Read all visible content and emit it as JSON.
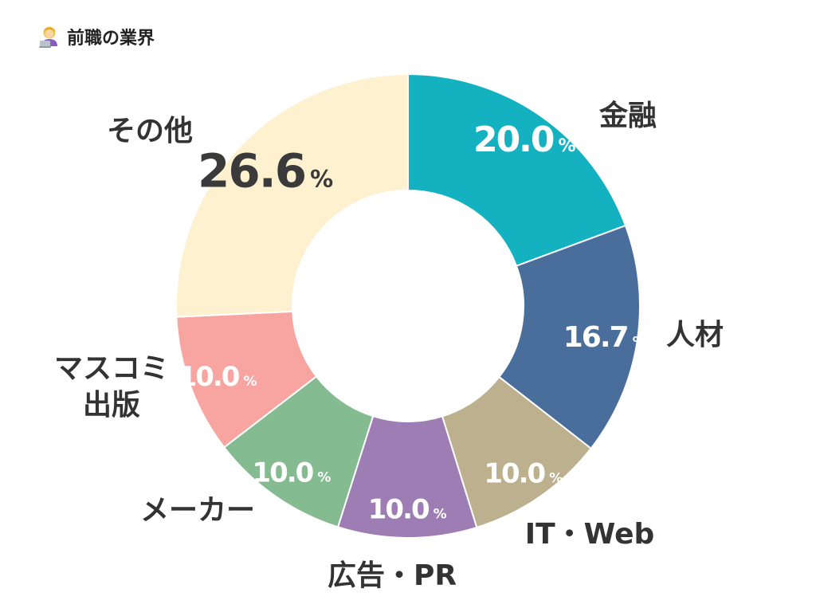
{
  "header": {
    "title": "前職の業界",
    "icon": "technologist-emoji-icon"
  },
  "chart_data": {
    "type": "pie",
    "donut": true,
    "categories": [
      "金融",
      "人材",
      "IT・Web",
      "広告・PR",
      "メーカー",
      "マスコミ出版",
      "その他"
    ],
    "label_lines": [
      [
        "金融"
      ],
      [
        "人材"
      ],
      [
        "IT・Web"
      ],
      [
        "広告・PR"
      ],
      [
        "メーカー"
      ],
      [
        "マスコミ",
        "出版"
      ],
      [
        "その他"
      ]
    ],
    "values": [
      20.0,
      16.7,
      10.0,
      10.0,
      10.0,
      10.0,
      26.6
    ],
    "value_labels": [
      "20.0",
      "16.7",
      "10.0",
      "10.0",
      "10.0",
      "10.0",
      "26.6"
    ],
    "unit": "%",
    "colors": [
      "#14b1c0",
      "#4a6e9b",
      "#bcb08e",
      "#9d7db4",
      "#84bb90",
      "#f8a5a2",
      "#fdf1cf"
    ],
    "value_label_colors": [
      "#ffffff",
      "#ffffff",
      "#ffffff",
      "#ffffff",
      "#ffffff",
      "#ffffff",
      "#3a3a3a"
    ],
    "start_angle_deg": 0,
    "direction": "clockwise"
  }
}
